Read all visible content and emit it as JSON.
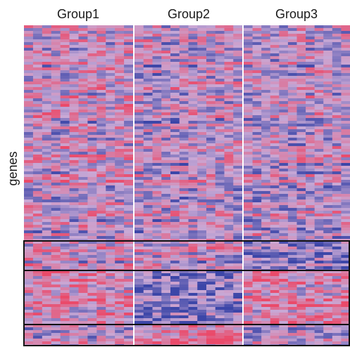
{
  "chart_data": {
    "type": "heatmap",
    "columns": [
      "Group1",
      "Group2",
      "Group3"
    ],
    "ylabel": "genes",
    "colors": {
      "low": "#3c46a8",
      "mid": "#c9a9d6",
      "high": "#ea4a6a",
      "separator": "#ffffff",
      "box": "#111111"
    },
    "gene_blocks": [
      {
        "pattern": "mixed"
      },
      {
        "pattern": "Group3 low"
      },
      {
        "pattern": "Group2 low"
      },
      {
        "pattern": "Group2 high"
      }
    ]
  }
}
